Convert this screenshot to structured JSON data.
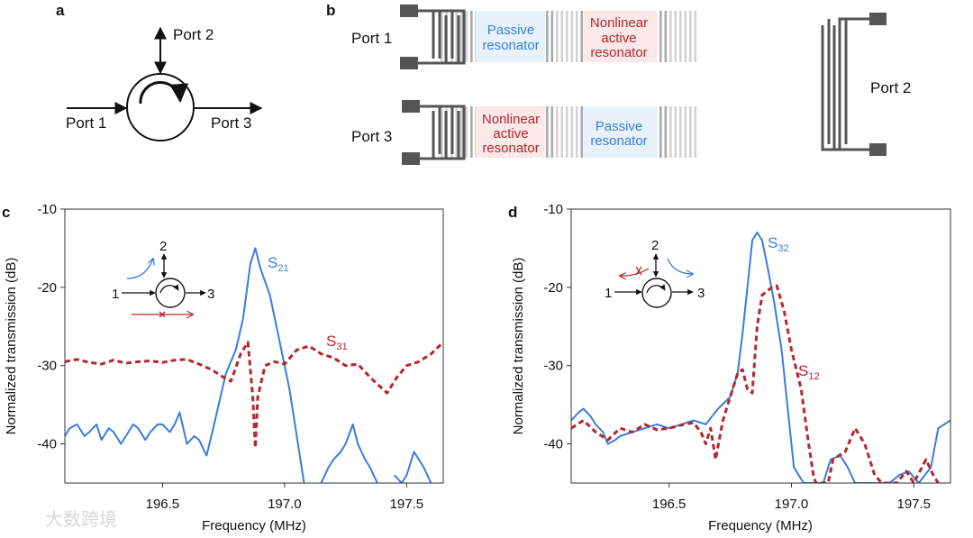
{
  "panel_a": {
    "label": "a",
    "ports": [
      "Port 1",
      "Port 2",
      "Port 3"
    ]
  },
  "panel_b": {
    "label": "b",
    "ports": {
      "p1": "Port 1",
      "p2": "Port 2",
      "p3": "Port 3"
    },
    "top_passive": [
      "Passive",
      "resonator"
    ],
    "top_nonlinear": [
      "Nonlinear",
      "active",
      "resonator"
    ],
    "bottom_nonlinear": [
      "Nonlinear",
      "active",
      "resonator"
    ],
    "bottom_passive": [
      "Passive",
      "resonator"
    ],
    "colors": {
      "passive_bg": "#e8f2fc",
      "nonlinear_bg": "#fbe8e8",
      "passive_text": "#3b7dd8",
      "nonlinear_text": "#c0393f"
    }
  },
  "watermark": "大数跨境",
  "chart_data": [
    {
      "panel": "c",
      "type": "line",
      "xlabel": "Frequency (MHz)",
      "ylabel": "Normalized transmission (dB)",
      "xlim": [
        196.1,
        197.65
      ],
      "ylim": [
        -45,
        -10
      ],
      "xticks": [
        "196.5",
        "197.0",
        "197.5"
      ],
      "xtick_values": [
        196.5,
        197.0,
        197.5
      ],
      "yticks": [
        "-10",
        "-20",
        "-30",
        "-40"
      ],
      "ytick_values": [
        -10,
        -20,
        -30,
        -40
      ],
      "inset": {
        "n1": "1",
        "n2": "2",
        "n3": "3"
      },
      "series": [
        {
          "name": "S21",
          "main": "S",
          "sub": "21",
          "color": "#3b7dd8",
          "style": "solid",
          "x": [
            196.1,
            196.12,
            196.15,
            196.18,
            196.2,
            196.23,
            196.25,
            196.28,
            196.3,
            196.33,
            196.35,
            196.38,
            196.4,
            196.43,
            196.45,
            196.48,
            196.5,
            196.53,
            196.55,
            196.57,
            196.6,
            196.63,
            196.65,
            196.68,
            196.7,
            196.73,
            196.76,
            196.8,
            196.83,
            196.86,
            196.88,
            196.9,
            196.94,
            196.98,
            197.02,
            197.05,
            197.08,
            null,
            197.15,
            197.18,
            197.2,
            197.23,
            197.25,
            197.28,
            197.3,
            197.33,
            197.35,
            197.38,
            null,
            197.45,
            197.48,
            197.5,
            197.53,
            197.55,
            197.57,
            197.6
          ],
          "y": [
            -39,
            -38,
            -37.5,
            -39,
            -38.5,
            -37.5,
            -39.5,
            -38,
            -38.5,
            -40,
            -39,
            -37.5,
            -38,
            -39.5,
            -38.5,
            -37.5,
            -37.5,
            -38.5,
            -37.5,
            -36,
            -40,
            -39,
            -39.5,
            -41.5,
            -39,
            -35,
            -31,
            -28,
            -24,
            -17,
            -15,
            -17.5,
            -21,
            -27,
            -33,
            -39,
            -45,
            null,
            -45,
            -43,
            -42,
            -41,
            -40,
            -37.5,
            -40,
            -42,
            -43,
            -45,
            null,
            -44,
            -45,
            -44,
            -41,
            -42,
            -43,
            -45
          ]
        },
        {
          "name": "S31",
          "main": "S",
          "sub": "31",
          "color": "#b5262e",
          "style": "dashed",
          "x": [
            196.1,
            196.15,
            196.2,
            196.25,
            196.3,
            196.35,
            196.4,
            196.45,
            196.5,
            196.55,
            196.6,
            196.65,
            196.7,
            196.75,
            196.78,
            196.82,
            196.85,
            196.87,
            196.88,
            196.89,
            196.92,
            196.96,
            197.0,
            197.05,
            197.1,
            197.15,
            197.2,
            197.25,
            197.3,
            197.35,
            197.42,
            197.46,
            197.5,
            197.55,
            197.6,
            197.65
          ],
          "y": [
            -29.5,
            -29.2,
            -29.6,
            -29.8,
            -29.3,
            -29.7,
            -29.5,
            -29.4,
            -29.6,
            -29.3,
            -29.2,
            -29.8,
            -30.5,
            -31.5,
            -32,
            -28.5,
            -27,
            -34,
            -40.5,
            -34,
            -30,
            -29.5,
            -29.8,
            -28,
            -27.5,
            -28.5,
            -29,
            -30,
            -29.8,
            -31.5,
            -33.5,
            -31.5,
            -30,
            -29.5,
            -28.5,
            -27
          ]
        }
      ]
    },
    {
      "panel": "d",
      "type": "line",
      "xlabel": "Frequency (MHz)",
      "ylabel": "Normalized transmission (dB)",
      "xlim": [
        196.1,
        197.65
      ],
      "ylim": [
        -45,
        -10
      ],
      "xticks": [
        "196.5",
        "197.0",
        "197.5"
      ],
      "xtick_values": [
        196.5,
        197.0,
        197.5
      ],
      "yticks": [
        "-10",
        "-20",
        "-30",
        "-40"
      ],
      "ytick_values": [
        -10,
        -20,
        -30,
        -40
      ],
      "inset": {
        "n1": "1",
        "n2": "2",
        "n3": "3"
      },
      "series": [
        {
          "name": "S32",
          "main": "S",
          "sub": "32",
          "color": "#3b7dd8",
          "style": "solid",
          "x": [
            196.1,
            196.13,
            196.15,
            196.18,
            196.2,
            196.23,
            196.25,
            196.28,
            196.3,
            196.35,
            196.4,
            196.45,
            196.5,
            196.55,
            196.6,
            196.65,
            196.7,
            196.75,
            196.78,
            196.8,
            196.82,
            196.84,
            196.86,
            196.88,
            196.9,
            196.93,
            196.96,
            196.99,
            197.01,
            197.03,
            197.05,
            197.13,
            197.16,
            197.2,
            197.23,
            197.26,
            197.4,
            197.44,
            197.48,
            197.52,
            197.57,
            197.6,
            197.65
          ],
          "y": [
            -37,
            -36,
            -35.5,
            -36.5,
            -37.5,
            -38.5,
            -40,
            -39.5,
            -39,
            -38.5,
            -38,
            -37.5,
            -38,
            -37.5,
            -37,
            -37.5,
            -35.5,
            -34,
            -31,
            -26,
            -20,
            -14,
            -13,
            -14,
            -17,
            -22,
            -28,
            -37,
            -43,
            -44,
            -45,
            -45,
            -42,
            -41.5,
            -43,
            -45,
            -45,
            -44,
            -43.5,
            -45,
            -43,
            -38,
            -37
          ]
        },
        {
          "name": "S12",
          "main": "S",
          "sub": "12",
          "color": "#b5262e",
          "style": "dashed",
          "x": [
            196.1,
            196.15,
            196.2,
            196.25,
            196.3,
            196.35,
            196.4,
            196.45,
            196.5,
            196.55,
            196.6,
            196.63,
            196.65,
            196.67,
            196.69,
            196.72,
            196.75,
            196.78,
            196.8,
            196.82,
            196.84,
            196.86,
            196.88,
            196.92,
            196.94,
            196.97,
            197.0,
            197.04,
            197.07,
            197.09,
            197.1,
            197.15,
            197.17,
            197.22,
            197.26,
            197.3,
            197.34,
            197.37,
            197.43,
            197.47,
            197.5,
            197.55,
            197.58,
            197.6
          ],
          "y": [
            -38,
            -37,
            -38.5,
            -39.5,
            -38,
            -38.5,
            -37.5,
            -38.2,
            -38,
            -37.6,
            -37.3,
            -38.5,
            -40,
            -38,
            -42,
            -37,
            -34,
            -31,
            -30.5,
            -33,
            -33.5,
            -25,
            -21,
            -20,
            -19.8,
            -23,
            -28,
            -33,
            -40,
            -44,
            -45,
            -45,
            -42,
            -41,
            -38,
            -40,
            -44,
            -45,
            -45,
            -43.5,
            -45,
            -42,
            -44,
            -45
          ]
        }
      ]
    }
  ]
}
